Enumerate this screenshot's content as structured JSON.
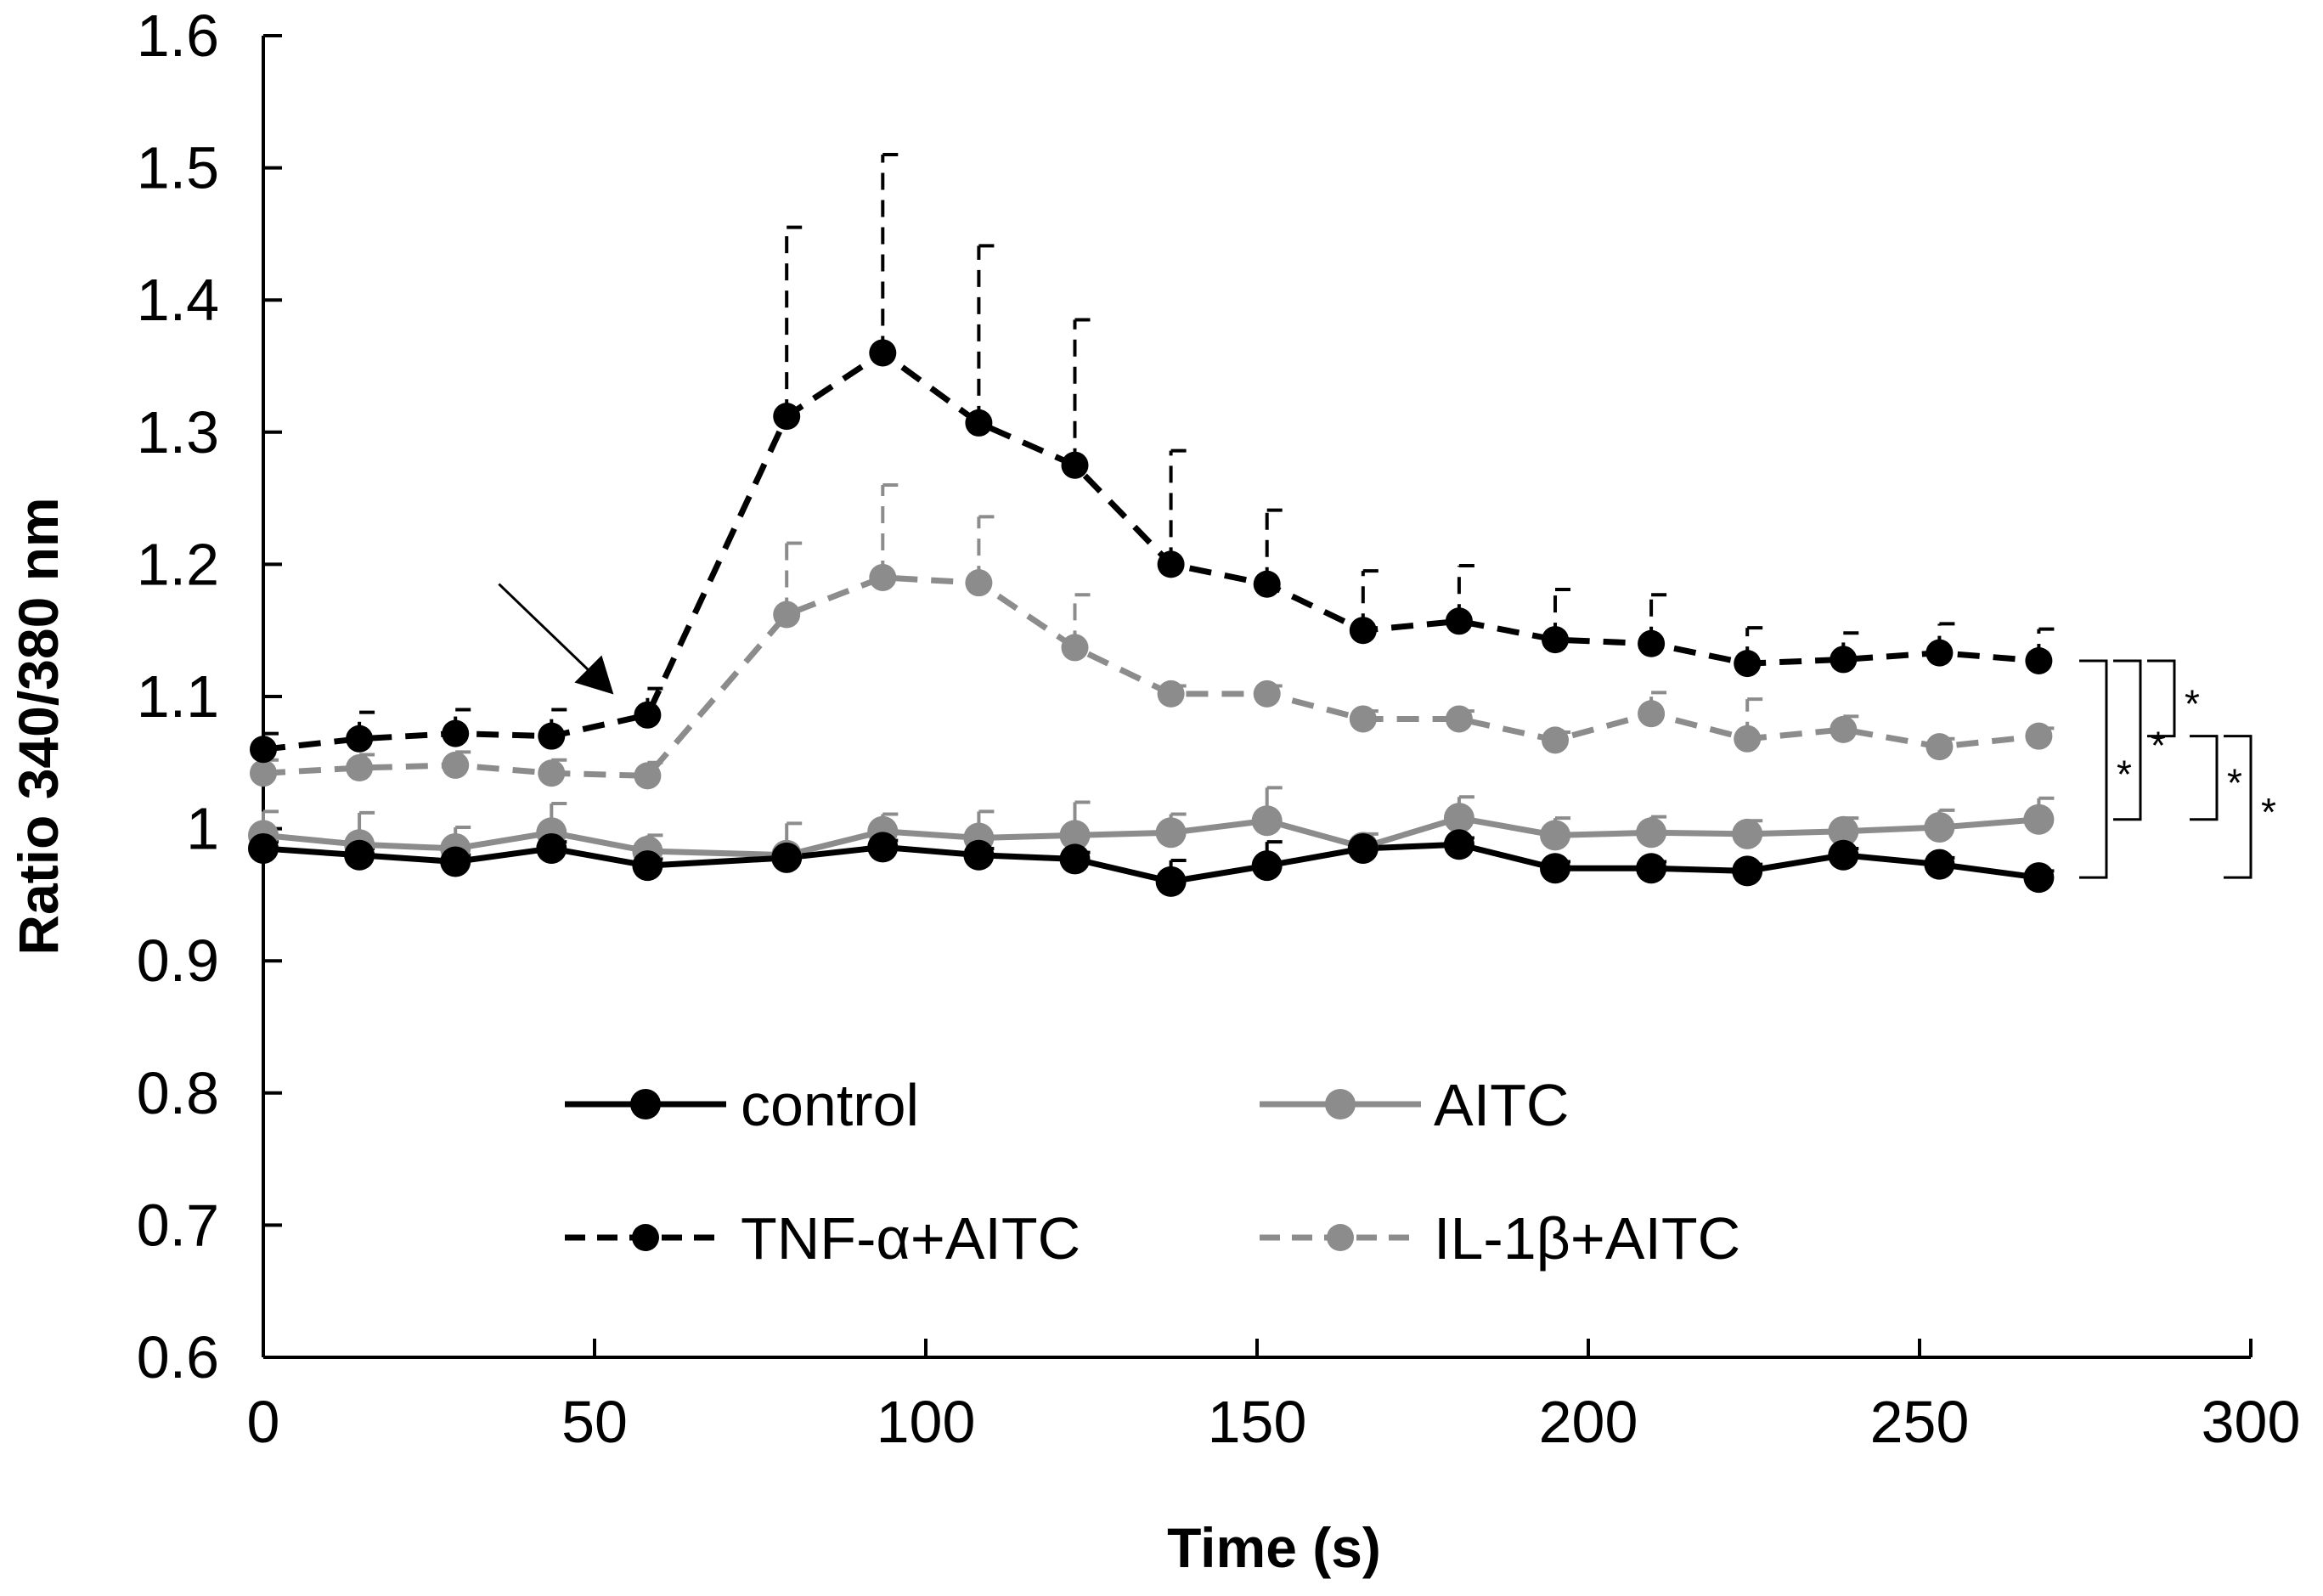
{
  "chart_data": {
    "type": "line",
    "xlabel": "Time (s)",
    "ylabel": "Ratio 340/380 nm",
    "xlim": [
      0,
      300
    ],
    "ylim": [
      0.6,
      1.6
    ],
    "xticks": [
      0,
      50,
      100,
      150,
      200,
      250,
      300
    ],
    "yticks": [
      0.6,
      0.7,
      0.8,
      0.9,
      1,
      1.1,
      1.2,
      1.3,
      1.4,
      1.5,
      1.6
    ],
    "ytick_labels": [
      "0.6",
      "0.7",
      "0.8",
      "0.9",
      "1",
      "1.1",
      "1.2",
      "1.3",
      "1.4",
      "1.5",
      "1.6"
    ],
    "grid": false,
    "legend_placement": "bottom-center",
    "x": [
      0,
      14.5,
      29,
      43.5,
      58,
      79,
      93.5,
      108,
      122.5,
      137,
      151.5,
      166,
      180.5,
      195,
      209.5,
      224,
      238.5,
      253,
      268
    ],
    "series": [
      {
        "name": "control",
        "color": "#000000",
        "dashed": false,
        "values": [
          0.985,
          0.98,
          0.975,
          0.985,
          0.972,
          0.978,
          0.986,
          0.98,
          0.977,
          0.96,
          0.972,
          0.985,
          0.988,
          0.97,
          0.97,
          0.968,
          0.98,
          0.973,
          0.963
        ],
        "errors": [
          0.005,
          0.005,
          0.005,
          0.005,
          0.005,
          0.005,
          0.005,
          0.005,
          0.005,
          0.016,
          0.018,
          0.005,
          0.005,
          0.005,
          0.005,
          0.005,
          0.005,
          0.005,
          0.005
        ]
      },
      {
        "name": "AITC",
        "color": "#8c8c8c",
        "dashed": false,
        "values": [
          0.995,
          0.988,
          0.985,
          0.997,
          0.983,
          0.98,
          0.998,
          0.993,
          0.995,
          0.997,
          1.006,
          0.986,
          1.008,
          0.995,
          0.997,
          0.996,
          0.998,
          1.001,
          1.007
        ],
        "errors": [
          0.018,
          0.024,
          0.016,
          0.022,
          0.012,
          0.024,
          0.013,
          0.02,
          0.025,
          0.014,
          0.025,
          0.01,
          0.016,
          0.013,
          0.012,
          0.01,
          0.01,
          0.013,
          0.016
        ]
      },
      {
        "name": "TNF-α+AITC",
        "color": "#000000",
        "dashed": true,
        "values": [
          1.06,
          1.068,
          1.072,
          1.07,
          1.086,
          1.312,
          1.36,
          1.307,
          1.275,
          1.2,
          1.185,
          1.15,
          1.157,
          1.143,
          1.14,
          1.125,
          1.128,
          1.133,
          1.127
        ],
        "errors": [
          0.012,
          0.02,
          0.018,
          0.02,
          0.02,
          0.143,
          0.15,
          0.134,
          0.11,
          0.086,
          0.056,
          0.045,
          0.042,
          0.038,
          0.037,
          0.027,
          0.02,
          0.022,
          0.024
        ]
      },
      {
        "name": "IL-1β+AITC",
        "color": "#8c8c8c",
        "dashed": true,
        "values": [
          1.042,
          1.046,
          1.048,
          1.042,
          1.04,
          1.162,
          1.19,
          1.186,
          1.137,
          1.102,
          1.102,
          1.083,
          1.083,
          1.067,
          1.087,
          1.068,
          1.075,
          1.062,
          1.07
        ],
        "errors": [
          0.01,
          0.01,
          0.01,
          0.01,
          0.01,
          0.054,
          0.07,
          0.05,
          0.04,
          0.006,
          0.006,
          0.006,
          0.006,
          0.006,
          0.016,
          0.03,
          0.01,
          0.006,
          0.006
        ]
      }
    ],
    "significance": [
      {
        "from": 1.127,
        "to": 1.07,
        "label": "*"
      },
      {
        "from": 1.127,
        "to": 1.007,
        "label": "*"
      },
      {
        "from": 1.127,
        "to": 0.963,
        "label": "*"
      },
      {
        "from": 1.07,
        "to": 1.007,
        "label": "*"
      },
      {
        "from": 1.07,
        "to": 0.963,
        "label": "*"
      }
    ],
    "annotation": {
      "type": "arrow",
      "points_to_x": 58
    }
  }
}
